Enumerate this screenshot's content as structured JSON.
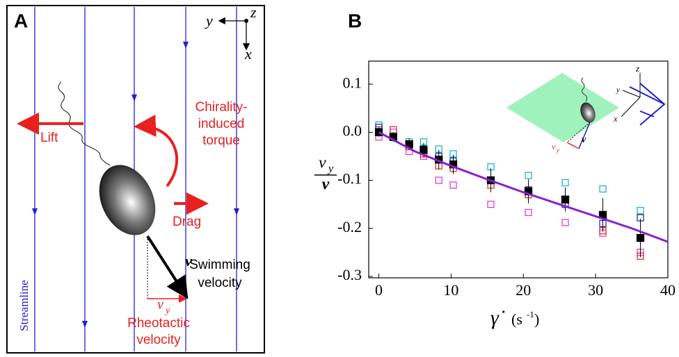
{
  "diagram": {
    "panel": "A",
    "axes": {
      "y": "y",
      "z": "z",
      "x": "x"
    },
    "torque": [
      "Chirality-",
      "induced",
      "torque"
    ],
    "lift": "Lift",
    "drag": "Drag",
    "velocity_symbol": "v",
    "velocity": [
      "Swimming",
      "velocity"
    ],
    "vy_symbol": "v",
    "vy_sub": "y",
    "rheotactic": [
      "Rheotactic",
      "velocity"
    ],
    "streamline": "Streamline"
  },
  "chart_data": {
    "type": "scatter",
    "panel": "B",
    "ylabel": {
      "numerator": "v",
      "subscript": "y",
      "denominator": "v"
    },
    "xlabel": {
      "symbol": "γ̇",
      "unit": "(s",
      "unit_exp": "-1",
      "unit_close": ")"
    },
    "xlim": [
      -1.4,
      40
    ],
    "ylim": [
      -0.303,
      0.148
    ],
    "xticks": [
      0,
      10,
      20,
      30,
      40
    ],
    "yticks": [
      0.1,
      {
        "value": 0,
        "label": "0.0"
      },
      -0.1,
      -0.2,
      -0.3
    ],
    "x": [
      0,
      2,
      4.2,
      6.2,
      8.3,
      10.3,
      15.5,
      20.7,
      25.8,
      31,
      36.2
    ],
    "series": [
      {
        "color": "#1fb5c8",
        "marker": "open",
        "values": [
          0.015,
          -0.01,
          -0.02,
          -0.02,
          -0.035,
          -0.045,
          -0.072,
          -0.09,
          -0.105,
          -0.118,
          -0.163
        ]
      },
      {
        "color": "#e040d0",
        "marker": "open",
        "values": [
          -0.01,
          0.0,
          -0.04,
          -0.05,
          -0.1,
          -0.11,
          -0.15,
          -0.167,
          -0.188,
          -0.21,
          -0.25
        ]
      },
      {
        "color": "#e03030",
        "marker": "open",
        "values": [
          0.005,
          0.005,
          -0.03,
          -0.045,
          -0.07,
          -0.075,
          -0.11,
          -0.13,
          -0.14,
          -0.205,
          -0.258
        ]
      },
      {
        "color": "#2030a0",
        "marker": "open",
        "values": [
          0.01,
          -0.01,
          -0.025,
          -0.035,
          -0.05,
          -0.06,
          -0.1,
          -0.12,
          -0.15,
          -0.19,
          -0.178
        ]
      },
      {
        "color": "#000000",
        "marker": "filled",
        "values": [
          0.0,
          -0.01,
          -0.025,
          -0.037,
          -0.057,
          -0.067,
          -0.1,
          -0.123,
          -0.14,
          -0.172,
          -0.22
        ],
        "errors": [
          0.01,
          0.01,
          0.012,
          0.015,
          0.02,
          0.02,
          0.025,
          0.025,
          0.025,
          0.035,
          0.04
        ]
      }
    ],
    "fit": {
      "color": "#8a1fd0",
      "x": [
        0,
        5,
        10,
        15,
        20,
        25,
        30,
        35,
        40
      ],
      "values": [
        0,
        -0.04,
        -0.07,
        -0.098,
        -0.125,
        -0.15,
        -0.175,
        -0.2,
        -0.228
      ]
    },
    "inset": {
      "z": "z",
      "y": "y",
      "x": "x",
      "v": "v",
      "vy": "v",
      "vy_sub": "y"
    }
  }
}
